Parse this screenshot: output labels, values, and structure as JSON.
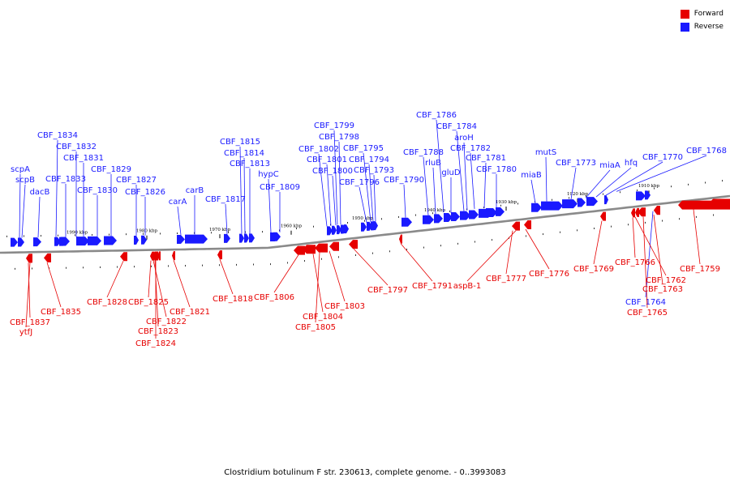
{
  "caption": "Clostridium botulinum F str. 230613, complete genome. - 0..3993083",
  "legend": [
    {
      "label": "Forward",
      "color": "#e60000"
    },
    {
      "label": "Reverse",
      "color": "#1a1aff"
    }
  ],
  "colors": {
    "forward": "#e60000",
    "reverse": "#1a1aff",
    "backbone": "#8a8a8a"
  },
  "ticks": [
    "1990 kbp",
    "1980 kbp",
    "1970 kbp",
    "1960 kbp",
    "1950 kbp",
    "1940 kbp",
    "1930 kbp",
    "1920 kbp",
    "1910 kbp"
  ],
  "reverse_genes": [
    "scpA",
    "scpB",
    "dacB",
    "CBF_1834",
    "CBF_1832",
    "CBF_1833",
    "CBF_1831",
    "CBF_1830",
    "CBF_1829",
    "CBF_1827",
    "CBF_1826",
    "carA",
    "carB",
    "CBF_1817",
    "CBF_1815",
    "CBF_1814",
    "CBF_1813",
    "hypC",
    "CBF_1809",
    "CBF_1802",
    "CBF_1801",
    "CBF_1800",
    "CBF_1799",
    "CBF_1798",
    "CBF_1796",
    "CBF_1795",
    "CBF_1794",
    "CBF_1793",
    "CBF_1790",
    "CBF_1788",
    "rluB",
    "gluD",
    "CBF_1786",
    "CBF_1784",
    "aroH",
    "CBF_1782",
    "CBF_1781",
    "CBF_1780",
    "miaB",
    "mutS",
    "CBF_1773",
    "miaA",
    "hfq",
    "CBF_1770",
    "CBF_1768",
    "CBF_1764"
  ],
  "forward_genes": [
    "CBF_1837",
    "ytfJ",
    "CBF_1835",
    "CBF_1828",
    "CBF_1825",
    "CBF_1822",
    "CBF_1823",
    "CBF_1824",
    "CBF_1821",
    "CBF_1818",
    "CBF_1806",
    "CBF_1804",
    "CBF_1805",
    "CBF_1803",
    "CBF_1797",
    "CBF_1791",
    "aspB-1",
    "CBF_1777",
    "CBF_1776",
    "CBF_1769",
    "CBF_1766",
    "CBF_1762",
    "CBF_1763",
    "CBF_1765",
    "CBF_1759"
  ]
}
